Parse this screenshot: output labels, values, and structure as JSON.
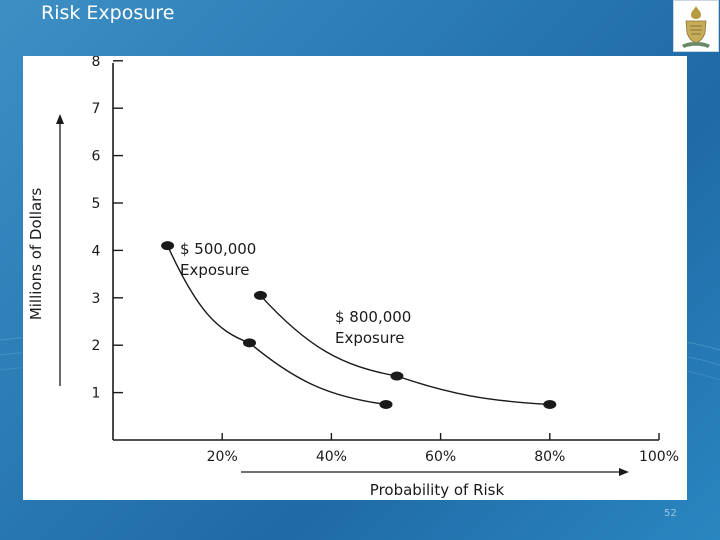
{
  "slide": {
    "title": "Risk Exposure",
    "page_number": "52"
  },
  "logo": {
    "icon": "university-crest-icon"
  },
  "chart_data": {
    "type": "line",
    "title": "",
    "xlabel": "Probability of Risk",
    "ylabel": "Millions of Dollars",
    "x_ticks": [
      "20%",
      "40%",
      "60%",
      "80%",
      "100%"
    ],
    "x_tick_values": [
      0.2,
      0.4,
      0.6,
      0.8,
      1.0
    ],
    "y_ticks": [
      "1",
      "2",
      "3",
      "4",
      "5",
      "6",
      "7",
      "8"
    ],
    "y_tick_values": [
      1,
      2,
      3,
      4,
      5,
      6,
      7,
      8
    ],
    "xlim": [
      0.0,
      1.0
    ],
    "ylim": [
      0,
      8
    ],
    "grid": false,
    "legend": "none",
    "series": [
      {
        "name": "$ 500,000 Exposure",
        "label_line1": "$ 500,000",
        "label_line2": "Exposure",
        "points": [
          {
            "x": 0.1,
            "y": 4.1
          },
          {
            "x": 0.25,
            "y": 2.05
          },
          {
            "x": 0.5,
            "y": 0.75
          }
        ]
      },
      {
        "name": "$ 800,000 Exposure",
        "label_line1": "$ 800,000",
        "label_line2": "Exposure",
        "points": [
          {
            "x": 0.27,
            "y": 3.05
          },
          {
            "x": 0.52,
            "y": 1.35
          },
          {
            "x": 0.8,
            "y": 0.75
          }
        ]
      }
    ],
    "colors": {
      "ink": "#1a1a1a"
    }
  }
}
